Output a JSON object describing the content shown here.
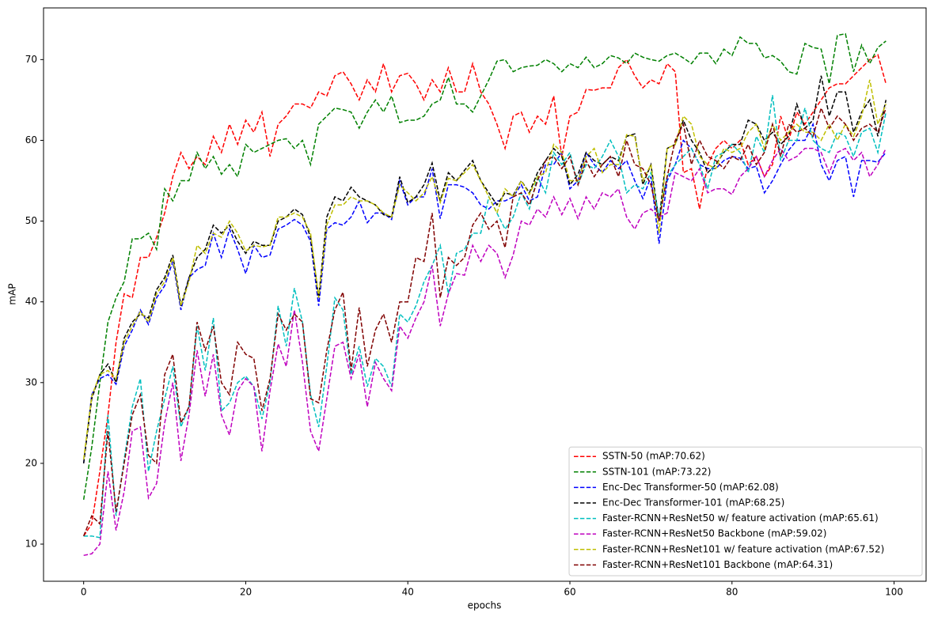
{
  "chart_data": {
    "type": "line",
    "x_label": "epochs",
    "y_label": "mAP",
    "x": [
      0,
      1,
      2,
      3,
      4,
      5,
      6,
      7,
      8,
      9,
      10,
      11,
      12,
      13,
      14,
      15,
      16,
      17,
      18,
      19,
      20,
      21,
      22,
      23,
      24,
      25,
      26,
      27,
      28,
      29,
      30,
      31,
      32,
      33,
      34,
      35,
      36,
      37,
      38,
      39,
      40,
      41,
      42,
      43,
      44,
      45,
      46,
      47,
      48,
      49,
      50,
      51,
      52,
      53,
      54,
      55,
      56,
      57,
      58,
      59,
      60,
      61,
      62,
      63,
      64,
      65,
      66,
      67,
      68,
      69,
      70,
      71,
      72,
      73,
      74,
      75,
      76,
      77,
      78,
      79,
      80,
      81,
      82,
      83,
      84,
      85,
      86,
      87,
      88,
      89,
      90,
      91,
      92,
      93,
      94,
      95,
      96,
      97,
      98,
      99
    ],
    "xlim": [
      -4.95,
      103.95
    ],
    "xticks": [
      0,
      20,
      40,
      60,
      80,
      100
    ],
    "ylim": [
      5.4,
      76.4
    ],
    "yticks": [
      10,
      20,
      30,
      40,
      50,
      60,
      70
    ],
    "dashed": true,
    "legend_position": "lower-right",
    "series": [
      {
        "name": "SSTN-50 (mAP:70.62)",
        "color": "#ff0000",
        "values": [
          11,
          12.5,
          19,
          26,
          35,
          41,
          40.5,
          45.5,
          45.5,
          48,
          51,
          55.5,
          58.5,
          56.5,
          58,
          57,
          60.5,
          58.5,
          62,
          59.5,
          62.5,
          61,
          63.5,
          58,
          62,
          63,
          64.5,
          64.5,
          64,
          66,
          65.5,
          68,
          68.5,
          67,
          65,
          67.5,
          66,
          69.5,
          66,
          68,
          68.3,
          67,
          65,
          67.5,
          66,
          69,
          66,
          66,
          69.5,
          66,
          64.5,
          62,
          59,
          63,
          63.5,
          61,
          63,
          62,
          65.5,
          58,
          63,
          63.5,
          66.3,
          66.2,
          66.5,
          66.5,
          69,
          70,
          68,
          66.5,
          67.5,
          67,
          69.5,
          68.5,
          56,
          56.5,
          51.5,
          57,
          59,
          60,
          59,
          60,
          57,
          58,
          55.5,
          57,
          63,
          60,
          63.5,
          62,
          63.5,
          65,
          66.5,
          67,
          67,
          68,
          69,
          70,
          70.6,
          67
        ]
      },
      {
        "name": "SSTN-101 (mAP:73.22)",
        "color": "#008000",
        "values": [
          15.5,
          22,
          30,
          37.5,
          40.5,
          42.5,
          47.8,
          47.8,
          48.5,
          46.5,
          54,
          52.5,
          55,
          55,
          58.5,
          56.5,
          58,
          55.8,
          57,
          55.5,
          59.5,
          58.5,
          59,
          59.5,
          60,
          60.2,
          59,
          60,
          57,
          62,
          63,
          64,
          63.8,
          63.5,
          61.5,
          63.5,
          65,
          63.5,
          65.5,
          62.2,
          62.5,
          62.5,
          63,
          64.5,
          65,
          67.8,
          64.5,
          64.5,
          63.5,
          65.5,
          67.5,
          69.8,
          70,
          68.5,
          69,
          69.2,
          69.3,
          70,
          69.5,
          68.5,
          69.5,
          69,
          70.3,
          69,
          69.5,
          70.5,
          70.2,
          69.5,
          70.8,
          70.3,
          70,
          69.8,
          70.5,
          70.8,
          70.2,
          69.5,
          70.8,
          70.8,
          69.5,
          71.3,
          70.5,
          72.8,
          72,
          72,
          70.2,
          70.5,
          69.8,
          68.5,
          68.2,
          72,
          71.5,
          71.3,
          67,
          73,
          73.2,
          68.5,
          71.8,
          69.5,
          71.5,
          72.3
        ]
      },
      {
        "name": "Enc-Dec Transformer-50 (mAP:62.08)",
        "color": "#0000ff",
        "values": [
          20,
          28.5,
          30.5,
          31,
          29.8,
          34.5,
          36.5,
          39,
          37.2,
          40.5,
          42,
          45,
          39,
          43,
          44,
          44.5,
          48.5,
          45.5,
          49,
          46.5,
          43.5,
          47,
          45.5,
          45.8,
          49,
          49.5,
          50.2,
          49.5,
          47.5,
          39.5,
          49,
          49.8,
          49.5,
          50.5,
          52.5,
          49.8,
          51,
          51,
          50.2,
          55,
          52,
          53,
          53,
          56.5,
          50.3,
          54.5,
          54.5,
          54.2,
          53.5,
          52,
          51.5,
          52.5,
          52.5,
          53,
          54.5,
          52.5,
          53,
          57,
          57,
          58.5,
          54,
          55,
          58.5,
          57,
          56,
          57.5,
          56.5,
          57.5,
          55,
          52.8,
          55.5,
          47.2,
          55,
          57,
          60,
          59,
          57,
          56.5,
          56.5,
          57.5,
          58,
          57.8,
          56.5,
          56.8,
          53.5,
          55,
          57,
          58.8,
          60,
          60,
          62,
          57,
          55,
          57.5,
          58,
          53,
          57.5,
          57.5,
          57.3,
          58.5
        ]
      },
      {
        "name": "Enc-Dec Transformer-101 (mAP:68.25)",
        "color": "#000000",
        "values": [
          20,
          28,
          31,
          32.3,
          30,
          35.5,
          37.5,
          38.5,
          38,
          41.5,
          43,
          45.8,
          39.5,
          43,
          45.5,
          46.5,
          49.5,
          48.5,
          49.5,
          47.5,
          46,
          47.5,
          47,
          47,
          50,
          50.5,
          51.5,
          50.8,
          48,
          40.5,
          50.5,
          53,
          52.5,
          54.2,
          53,
          52.5,
          52,
          50.8,
          50.5,
          55.5,
          52.3,
          53,
          54.5,
          57.2,
          52.5,
          56,
          55,
          56.3,
          57.5,
          55,
          53.5,
          52,
          53.5,
          53.2,
          55,
          53.5,
          56,
          57.5,
          59,
          58,
          54.5,
          55.8,
          58.5,
          57.5,
          57,
          58,
          57.5,
          60.5,
          60.8,
          54.5,
          57,
          50,
          59,
          59.5,
          62.5,
          60,
          58.5,
          56,
          57,
          58.5,
          59.5,
          59.5,
          62.5,
          62,
          60,
          61,
          59.5,
          60.5,
          64.5,
          61.5,
          62.5,
          68,
          63,
          66,
          66,
          61,
          63.5,
          65,
          60.5,
          65
        ]
      },
      {
        "name": "Faster-RCNN+ResNet50 w/ feature activation (mAP:65.61)",
        "color": "#00bfbf",
        "values": [
          11,
          11,
          10.8,
          26,
          13.5,
          20.5,
          27,
          30.5,
          19,
          24,
          28,
          32,
          24.5,
          27,
          37,
          31.5,
          38,
          26.5,
          27.5,
          30,
          30.8,
          29.5,
          25.5,
          30,
          39.5,
          34.5,
          41.7,
          37.5,
          28.5,
          24.5,
          32,
          40.5,
          39,
          31,
          34.5,
          29.5,
          33,
          32,
          29.5,
          38.5,
          37.5,
          39.5,
          42.5,
          44.5,
          47,
          41,
          46,
          46.5,
          48.5,
          48.5,
          53,
          51,
          49,
          50.5,
          53.5,
          51.5,
          55.5,
          53.5,
          58.5,
          57,
          58.5,
          54.5,
          57,
          56.5,
          58,
          60,
          58,
          53.5,
          54.5,
          54,
          56,
          50.5,
          55.5,
          57,
          58,
          59,
          57,
          54,
          58,
          58.5,
          59.5,
          58.5,
          56,
          60.5,
          58.5,
          65.6,
          57.5,
          60,
          60,
          64,
          60,
          59,
          58.5,
          61,
          60.5,
          58,
          61,
          61.5,
          58.5,
          63.5
        ]
      },
      {
        "name": "Faster-RCNN+ResNet50 Backbone (mAP:59.02)",
        "color": "#bf00bf",
        "values": [
          8.6,
          8.8,
          10,
          19,
          11.7,
          16.5,
          24,
          24.5,
          15.7,
          17.5,
          25,
          30,
          20.3,
          26,
          34,
          28.3,
          33.5,
          26,
          23.5,
          29,
          30.5,
          29.5,
          21.5,
          29,
          34.8,
          32,
          39,
          32.5,
          24,
          21.5,
          28,
          34.5,
          35,
          30.5,
          33.5,
          27,
          32.5,
          30.5,
          29,
          37,
          35.5,
          38,
          40,
          44.5,
          37,
          41,
          43.5,
          43.3,
          47,
          45,
          47,
          46,
          43,
          45.8,
          50,
          49.5,
          51.5,
          50.5,
          53,
          50.8,
          52.8,
          50.3,
          53,
          51.5,
          53.5,
          53,
          54,
          50.5,
          49,
          51,
          51.5,
          50.5,
          51,
          56,
          55.5,
          55,
          56.5,
          53.5,
          54,
          54,
          53.3,
          55.5,
          56.5,
          58,
          55.5,
          57.5,
          59,
          57.5,
          58,
          59,
          59,
          58.5,
          56,
          58.5,
          59,
          57.5,
          58.5,
          55.5,
          57,
          59
        ]
      },
      {
        "name": "Faster-RCNN+ResNet101 w/ feature activation (mAP:67.52)",
        "color": "#bfbf00",
        "values": [
          20.5,
          28.3,
          31,
          31.5,
          30.5,
          35,
          37,
          38.8,
          37.5,
          41,
          42.5,
          45.5,
          39.5,
          42.5,
          47,
          46,
          48.5,
          48,
          50,
          48.5,
          46.3,
          47,
          46.8,
          47,
          50.5,
          50.5,
          51,
          50.5,
          48.5,
          40.5,
          49.5,
          52,
          52,
          53,
          52.5,
          52.5,
          52,
          51,
          50.5,
          54.5,
          53.5,
          52.5,
          53.5,
          55.5,
          52.3,
          55.3,
          55,
          56,
          57,
          55,
          53,
          51,
          54,
          53,
          55,
          53.3,
          55.5,
          56,
          59.5,
          58.5,
          55,
          55,
          58,
          59,
          56,
          57,
          57,
          60.7,
          60.5,
          55,
          57,
          48.5,
          59,
          59.5,
          63,
          62,
          58,
          57,
          56.5,
          59,
          58.5,
          59,
          61,
          62,
          59,
          62,
          60,
          61,
          62,
          61,
          61,
          60,
          62,
          60,
          62,
          60.5,
          63,
          67.5,
          62,
          64.5
        ]
      },
      {
        "name": "Faster-RCNN+ResNet101 Backbone (mAP:64.31)",
        "color": "#800000",
        "values": [
          11,
          13.5,
          12.5,
          24,
          14,
          20,
          26,
          28.5,
          21,
          20,
          31,
          33.5,
          25,
          27,
          37.5,
          34,
          37,
          30,
          28.5,
          35,
          33.5,
          33,
          26.5,
          30.5,
          38.5,
          36.5,
          38.5,
          37.5,
          28,
          27.5,
          34,
          39,
          41.2,
          31.5,
          39.3,
          32,
          36.5,
          38.5,
          35,
          40,
          40,
          45.5,
          45,
          51,
          40.5,
          45.5,
          44.5,
          45.5,
          49.5,
          51,
          49,
          50,
          46.7,
          53,
          53.5,
          52,
          55,
          57.5,
          58,
          56.5,
          58,
          54.5,
          57.5,
          55.5,
          57,
          58,
          55.5,
          60,
          57,
          56.5,
          54.5,
          50,
          55.5,
          60,
          62,
          57,
          60,
          58,
          57.5,
          56.5,
          58,
          57.5,
          59.5,
          57,
          58.5,
          62,
          58,
          62,
          61,
          61.5,
          60.5,
          64,
          61.5,
          63,
          62,
          60,
          61.5,
          62,
          61,
          64
        ]
      }
    ]
  }
}
